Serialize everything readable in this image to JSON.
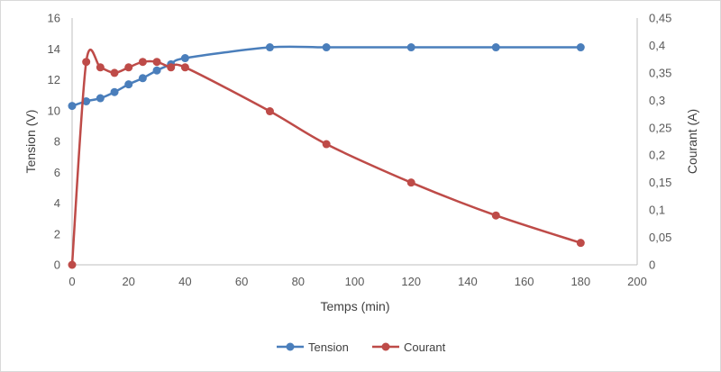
{
  "chart_data": {
    "type": "line",
    "smooth": true,
    "title": "",
    "xlabel": "Temps (min)",
    "ylabel": "Tension (V)",
    "y2label": "Courant (A)",
    "xlim": [
      0,
      200
    ],
    "xticks": [
      0,
      20,
      40,
      60,
      80,
      100,
      120,
      140,
      160,
      180,
      200
    ],
    "ylim": [
      0,
      16
    ],
    "yticks": [
      0,
      2,
      4,
      6,
      8,
      10,
      12,
      14,
      16
    ],
    "y2lim": [
      0,
      0.45
    ],
    "y2ticks": [
      "0",
      "0,05",
      "0,1",
      "0,15",
      "0,2",
      "0,25",
      "0,3",
      "0,35",
      "0,4",
      "0,45"
    ],
    "grid": false,
    "legend_position": "bottom",
    "series": [
      {
        "name": "Tension",
        "axis": "left",
        "color": "#4a7ebb",
        "x": [
          0,
          5,
          10,
          15,
          20,
          25,
          30,
          35,
          40,
          70,
          90,
          120,
          150,
          180
        ],
        "y": [
          10.3,
          10.6,
          10.8,
          11.2,
          11.7,
          12.1,
          12.6,
          13.0,
          13.4,
          14.1,
          14.1,
          14.1,
          14.1,
          14.1
        ]
      },
      {
        "name": "Courant",
        "axis": "right",
        "color": "#be4b48",
        "x": [
          0,
          5,
          10,
          15,
          20,
          25,
          30,
          35,
          40,
          70,
          90,
          120,
          150,
          180
        ],
        "y": [
          0,
          0.37,
          0.36,
          0.35,
          0.36,
          0.37,
          0.37,
          0.36,
          0.36,
          0.28,
          0.22,
          0.15,
          0.09,
          0.04
        ]
      }
    ]
  }
}
